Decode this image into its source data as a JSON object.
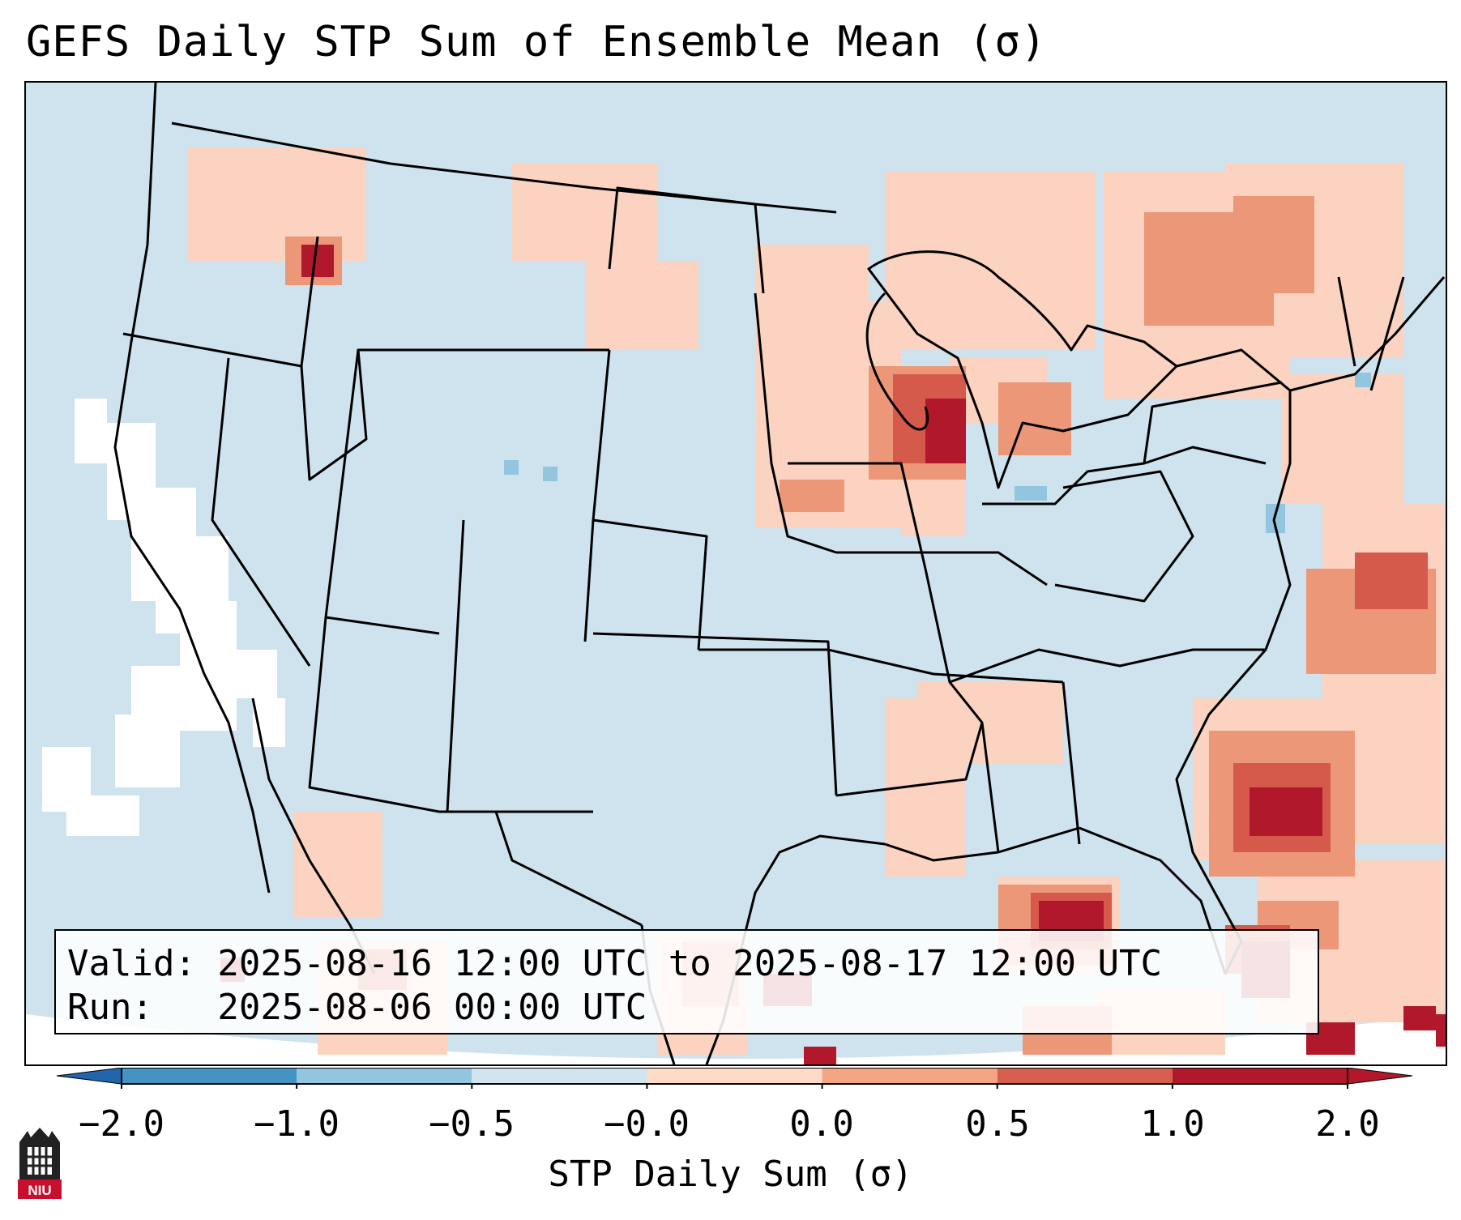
{
  "title": "GEFS Daily STP Sum of Ensemble Mean (σ)",
  "map": {
    "region": "Continental United States",
    "colors": {
      "ocean_land_base": "#cfe3ee",
      "light_pos": "#fbd3c0",
      "med_pos": "#eb9778",
      "strong_pos": "#d55a4c",
      "max_pos": "#b2182b",
      "neg": "#92c5de",
      "strong_neg": "#4393c3",
      "near_zero": "#ffffff",
      "border": "#000000"
    }
  },
  "info": {
    "valid": "Valid: 2025-08-16 12:00 UTC to 2025-08-17 12:00 UTC",
    "run": "Run:   2025-08-06 00:00 UTC"
  },
  "colorbar": {
    "ticks": [
      "−2.0",
      "−1.0",
      "−0.5",
      "−0.0",
      "0.0",
      "0.5",
      "1.0",
      "2.0"
    ],
    "colors": [
      "#4393c3",
      "#92c5de",
      "#d1e5f0",
      "#f7f7f7",
      "#fddbc7",
      "#f4a582",
      "#d6604d",
      "#b2182b"
    ],
    "extend_low": "#2166ac",
    "extend_high": "#b2182b",
    "label": "STP Daily Sum (σ)"
  },
  "logo": {
    "name": "NIU"
  }
}
